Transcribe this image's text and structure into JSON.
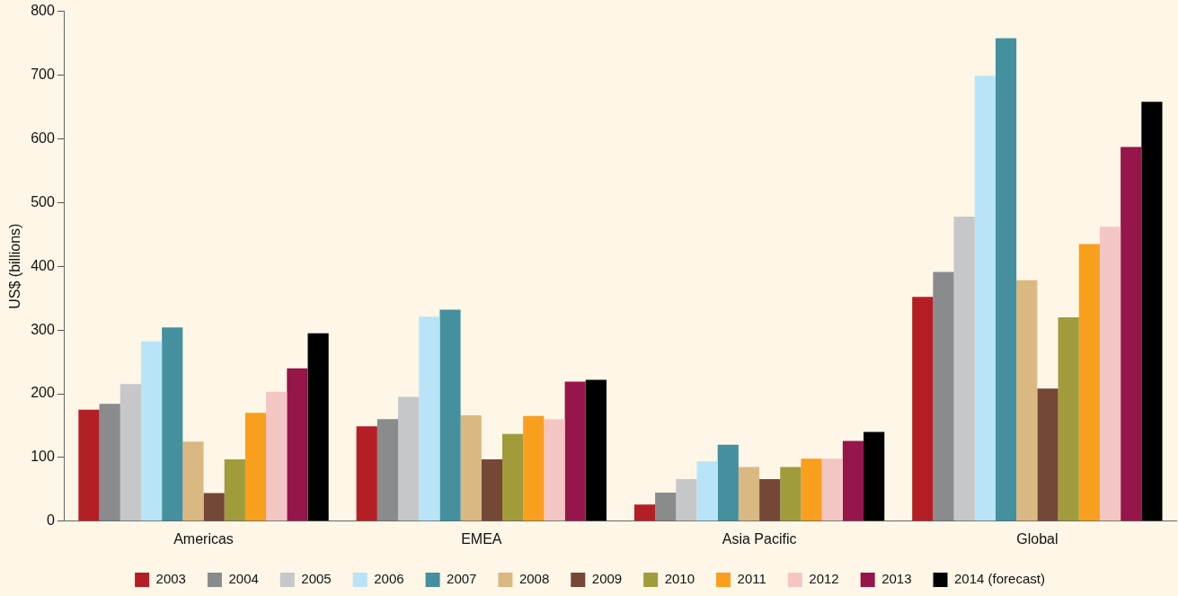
{
  "chart_data": {
    "type": "bar",
    "ylabel": "US$ (billions)",
    "categories": [
      "Americas",
      "EMEA",
      "Asia Pacific",
      "Global"
    ],
    "series": [
      {
        "name": "2003",
        "color": "#b41f26",
        "values": [
          175,
          149,
          26,
          352
        ]
      },
      {
        "name": "2004",
        "color": "#8a8b8d",
        "values": [
          184,
          160,
          45,
          391
        ]
      },
      {
        "name": "2005",
        "color": "#c6c7c9",
        "values": [
          215,
          195,
          66,
          478
        ]
      },
      {
        "name": "2006",
        "color": "#b9e4f7",
        "values": [
          282,
          321,
          94,
          699
        ]
      },
      {
        "name": "2007",
        "color": "#44909e",
        "values": [
          304,
          332,
          120,
          758
        ]
      },
      {
        "name": "2008",
        "color": "#d9b882",
        "values": [
          125,
          166,
          85,
          378
        ]
      },
      {
        "name": "2009",
        "color": "#744736",
        "values": [
          44,
          97,
          66,
          208
        ]
      },
      {
        "name": "2010",
        "color": "#a09c3c",
        "values": [
          97,
          137,
          85,
          320
        ]
      },
      {
        "name": "2011",
        "color": "#f89f1d",
        "values": [
          170,
          165,
          98,
          435
        ]
      },
      {
        "name": "2012",
        "color": "#f3c6c4",
        "values": [
          203,
          160,
          98,
          462
        ]
      },
      {
        "name": "2013",
        "color": "#96154a",
        "values": [
          240,
          219,
          126,
          587
        ]
      },
      {
        "name": "2014 (forecast)",
        "color": "#000000",
        "values": [
          295,
          222,
          140,
          658
        ]
      }
    ],
    "ylim": [
      0,
      800
    ],
    "yticks": [
      0,
      100,
      200,
      300,
      400,
      500,
      600,
      700,
      800
    ],
    "grid": false,
    "legend": "bottom"
  }
}
